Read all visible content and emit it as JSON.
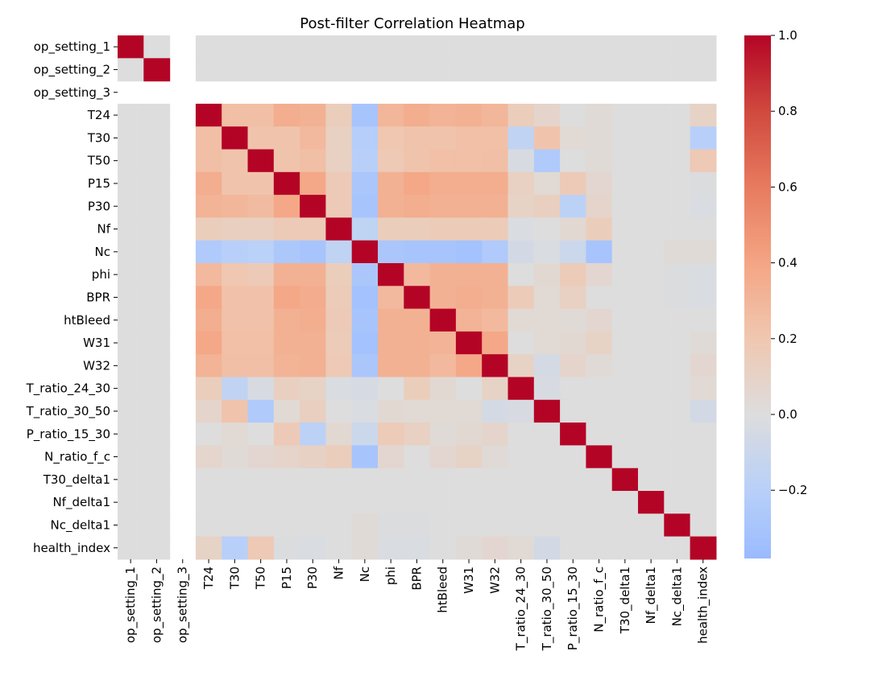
{
  "chart_data": {
    "type": "heatmap",
    "title": "Post-filter Correlation Heatmap",
    "xlabel": "",
    "ylabel": "",
    "row_labels": [
      "op_setting_1",
      "op_setting_2",
      "op_setting_3",
      "T24",
      "T30",
      "T50",
      "P15",
      "P30",
      "Nf",
      "Nc",
      "phi",
      "BPR",
      "htBleed",
      "W31",
      "W32",
      "T_ratio_24_30",
      "T_ratio_30_50",
      "P_ratio_15_30",
      "N_ratio_f_c",
      "T30_delta1",
      "Nf_delta1",
      "Nc_delta1",
      "health_index"
    ],
    "col_labels": [
      "op_setting_1",
      "op_setting_2",
      "op_setting_3",
      "T24",
      "T30",
      "T50",
      "P15",
      "P30",
      "Nf",
      "Nc",
      "phi",
      "BPR",
      "htBleed",
      "W31",
      "W32",
      "T_ratio_24_30",
      "T_ratio_30_50",
      "P_ratio_15_30",
      "N_ratio_f_c",
      "T30_delta1",
      "Nf_delta1",
      "Nc_delta1",
      "health_index"
    ],
    "values": [
      [
        1.0,
        0.0,
        null,
        0.0,
        0.0,
        0.0,
        0.0,
        0.0,
        0.0,
        0.0,
        0.0,
        0.0,
        0.0,
        0.0,
        0.0,
        0.0,
        0.0,
        0.0,
        0.0,
        0.0,
        0.0,
        0.0,
        0.0
      ],
      [
        0.0,
        1.0,
        null,
        0.0,
        0.0,
        0.0,
        0.0,
        0.0,
        0.0,
        0.0,
        0.0,
        0.0,
        0.0,
        0.0,
        0.0,
        0.0,
        0.0,
        0.0,
        0.0,
        0.0,
        0.0,
        0.0,
        0.0
      ],
      [
        null,
        null,
        null,
        null,
        null,
        null,
        null,
        null,
        null,
        null,
        null,
        null,
        null,
        null,
        null,
        null,
        null,
        null,
        null,
        null,
        null,
        null,
        null
      ],
      [
        0.0,
        0.0,
        null,
        1.0,
        0.25,
        0.25,
        0.35,
        0.33,
        0.15,
        -0.3,
        0.3,
        0.35,
        0.32,
        0.33,
        0.3,
        0.15,
        0.08,
        0.0,
        0.03,
        0.0,
        0.0,
        0.0,
        0.1
      ],
      [
        0.0,
        0.0,
        null,
        0.25,
        1.0,
        0.22,
        0.22,
        0.28,
        0.12,
        -0.22,
        0.2,
        0.22,
        0.22,
        0.24,
        0.24,
        -0.15,
        0.22,
        0.04,
        0.03,
        0.0,
        0.0,
        0.0,
        -0.2
      ],
      [
        0.0,
        0.0,
        null,
        0.25,
        0.22,
        1.0,
        0.22,
        0.25,
        0.12,
        -0.2,
        0.18,
        0.22,
        0.24,
        0.24,
        0.25,
        -0.03,
        -0.25,
        0.0,
        0.03,
        0.0,
        0.0,
        0.0,
        0.18
      ],
      [
        0.0,
        0.0,
        null,
        0.35,
        0.22,
        0.22,
        1.0,
        0.38,
        0.17,
        -0.28,
        0.33,
        0.38,
        0.35,
        0.35,
        0.35,
        0.12,
        0.04,
        0.17,
        0.06,
        0.0,
        0.0,
        0.0,
        -0.01
      ],
      [
        0.0,
        0.0,
        null,
        0.32,
        0.3,
        0.27,
        0.38,
        1.0,
        0.17,
        -0.3,
        0.33,
        0.35,
        0.33,
        0.33,
        0.33,
        0.1,
        0.13,
        -0.18,
        0.08,
        0.0,
        0.0,
        0.0,
        -0.02
      ],
      [
        0.0,
        0.0,
        null,
        0.15,
        0.13,
        0.13,
        0.17,
        0.17,
        1.0,
        -0.16,
        0.15,
        0.15,
        0.16,
        0.16,
        0.16,
        -0.02,
        0.0,
        0.05,
        0.15,
        0.0,
        0.0,
        0.0,
        0.0
      ],
      [
        0.0,
        0.0,
        null,
        -0.25,
        -0.2,
        -0.19,
        -0.27,
        -0.3,
        -0.16,
        1.0,
        -0.28,
        -0.3,
        -0.3,
        -0.32,
        -0.25,
        -0.06,
        -0.02,
        -0.1,
        -0.3,
        0.0,
        0.0,
        0.03,
        0.03
      ],
      [
        0.0,
        0.0,
        null,
        0.28,
        0.2,
        0.17,
        0.33,
        0.33,
        0.15,
        -0.28,
        1.0,
        0.28,
        0.33,
        0.33,
        0.33,
        0.0,
        0.05,
        0.16,
        0.06,
        0.0,
        0.0,
        -0.01,
        -0.02
      ],
      [
        0.0,
        0.0,
        null,
        0.38,
        0.23,
        0.23,
        0.38,
        0.36,
        0.16,
        -0.32,
        0.28,
        1.0,
        0.33,
        0.35,
        0.33,
        0.16,
        0.04,
        0.12,
        0.0,
        0.0,
        0.0,
        -0.01,
        -0.02
      ],
      [
        0.0,
        0.0,
        null,
        0.35,
        0.23,
        0.23,
        0.33,
        0.35,
        0.17,
        -0.3,
        0.33,
        0.33,
        1.0,
        0.32,
        0.28,
        0.04,
        0.04,
        0.03,
        0.06,
        0.0,
        0.0,
        0.0,
        0.0
      ],
      [
        0.0,
        0.0,
        null,
        0.38,
        0.24,
        0.24,
        0.33,
        0.33,
        0.16,
        -0.32,
        0.33,
        0.33,
        0.32,
        1.0,
        0.38,
        0.0,
        0.04,
        0.05,
        0.1,
        0.0,
        0.0,
        0.0,
        0.03
      ],
      [
        0.0,
        0.0,
        null,
        0.32,
        0.25,
        0.25,
        0.32,
        0.33,
        0.18,
        -0.28,
        0.33,
        0.33,
        0.28,
        0.38,
        1.0,
        0.1,
        -0.05,
        0.08,
        0.03,
        0.0,
        0.0,
        0.0,
        0.06
      ],
      [
        0.0,
        0.0,
        null,
        0.15,
        -0.15,
        -0.03,
        0.13,
        0.1,
        -0.02,
        -0.04,
        0.0,
        0.15,
        0.05,
        0.0,
        0.1,
        1.0,
        -0.03,
        0.0,
        0.0,
        0.0,
        0.0,
        0.0,
        0.04
      ],
      [
        0.0,
        0.0,
        null,
        0.08,
        0.22,
        -0.25,
        0.04,
        0.13,
        0.0,
        -0.02,
        0.05,
        0.04,
        0.04,
        0.04,
        -0.05,
        -0.03,
        1.0,
        0.0,
        0.0,
        0.0,
        0.0,
        0.0,
        -0.06
      ],
      [
        0.0,
        0.0,
        null,
        0.0,
        0.04,
        0.0,
        0.17,
        -0.18,
        0.05,
        -0.1,
        0.16,
        0.12,
        0.03,
        0.05,
        0.08,
        0.0,
        0.0,
        1.0,
        0.0,
        0.0,
        0.0,
        0.0,
        0.0
      ],
      [
        0.0,
        0.0,
        null,
        0.07,
        0.03,
        0.06,
        0.09,
        0.11,
        0.15,
        -0.3,
        0.06,
        0.0,
        0.06,
        0.1,
        0.03,
        0.0,
        0.0,
        0.0,
        1.0,
        0.0,
        0.0,
        0.0,
        0.0
      ],
      [
        0.0,
        0.0,
        null,
        0.0,
        0.0,
        0.0,
        0.0,
        0.0,
        0.0,
        0.0,
        0.0,
        0.0,
        0.0,
        0.0,
        0.0,
        0.0,
        0.0,
        0.0,
        0.0,
        1.0,
        0.0,
        0.0,
        0.0
      ],
      [
        0.0,
        0.0,
        null,
        0.0,
        0.0,
        0.0,
        0.0,
        0.0,
        0.0,
        0.0,
        0.0,
        0.0,
        0.0,
        0.0,
        0.0,
        0.0,
        0.0,
        0.0,
        0.0,
        0.0,
        1.0,
        0.0,
        0.0
      ],
      [
        0.0,
        0.0,
        null,
        0.0,
        0.0,
        0.0,
        0.0,
        0.0,
        0.0,
        0.03,
        -0.01,
        -0.01,
        0.0,
        0.0,
        0.0,
        0.0,
        0.0,
        0.0,
        0.0,
        0.0,
        0.0,
        1.0,
        0.0
      ],
      [
        0.0,
        0.0,
        null,
        0.1,
        -0.2,
        0.18,
        -0.01,
        -0.02,
        0.0,
        0.03,
        -0.02,
        -0.02,
        0.0,
        0.03,
        0.06,
        0.04,
        -0.06,
        0.0,
        0.0,
        0.0,
        0.0,
        0.0,
        1.0
      ]
    ],
    "colorbar": {
      "vmin": -0.38,
      "vmax": 1.0,
      "center": 0.0,
      "colormap": "coolwarm",
      "ticks": [
        -0.2,
        0.0,
        0.2,
        0.4,
        0.6,
        0.8,
        1.0
      ],
      "tick_labels": [
        "−0.2",
        "0.0",
        "0.2",
        "0.4",
        "0.6",
        "0.8",
        "1.0"
      ]
    },
    "grid": false
  }
}
